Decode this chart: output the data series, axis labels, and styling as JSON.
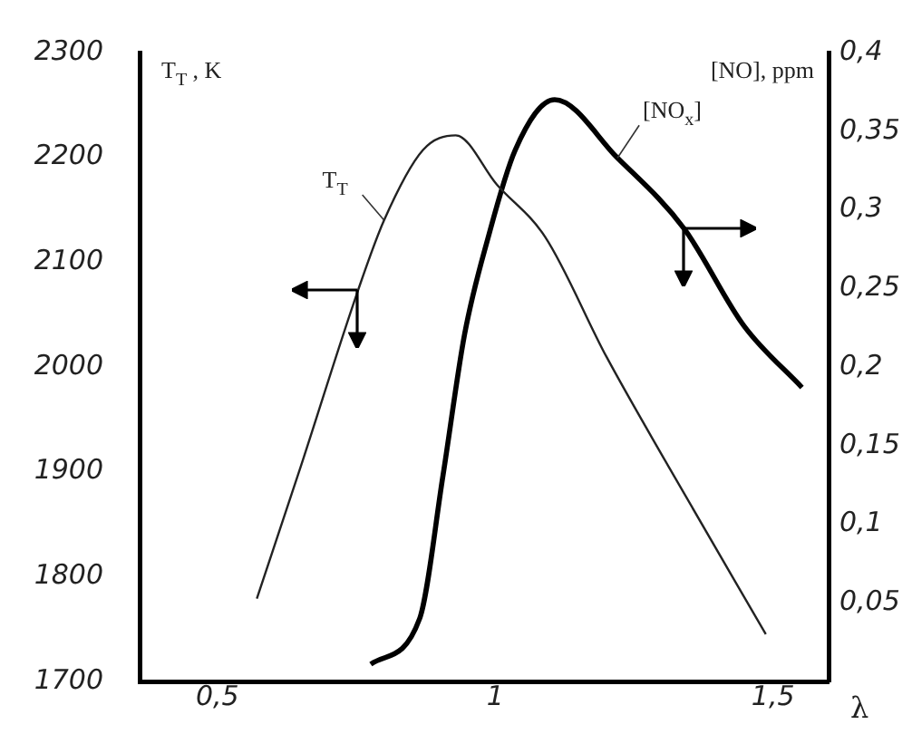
{
  "chart_data": {
    "type": "line",
    "xlabel": "λ",
    "ylabel": "T$_{T}$ , K",
    "y2label": "[NO], ppm",
    "marker": "none",
    "xlim": [
      0.36,
      1.6
    ],
    "xticks": [
      {
        "value": 0.5,
        "label": "0,5"
      },
      {
        "value": 1,
        "label": "1"
      },
      {
        "value": 1.5,
        "label": "1,5"
      }
    ],
    "ylim": [
      1700,
      2300
    ],
    "yticks": [
      1700,
      1800,
      1900,
      2000,
      2100,
      2200,
      2300
    ],
    "y2lim": [
      0,
      0.4
    ],
    "y2ticks": [
      {
        "value": 0.05,
        "label": "0,05"
      },
      {
        "value": 0.1,
        "label": "0,1"
      },
      {
        "value": 0.15,
        "label": "0,15"
      },
      {
        "value": 0.2,
        "label": "0,2"
      },
      {
        "value": 0.25,
        "label": "0,25"
      },
      {
        "value": 0.3,
        "label": "0,3"
      },
      {
        "value": 0.35,
        "label": "0,35"
      },
      {
        "value": 0.4,
        "label": "0,4"
      }
    ],
    "series": [
      {
        "name": "T$_{T}$",
        "color": "#222222",
        "x": [
          0.571,
          0.65,
          0.753,
          0.8,
          0.87,
          0.929,
          1.003,
          1.09,
          1.2,
          1.312,
          1.487
        ],
        "values": [
          1779,
          1905,
          2073,
          2140,
          2207,
          2221,
          2174,
          2124,
          2010,
          1905,
          1745
        ]
      },
      {
        "name": "[NO$_{x}$]",
        "color": "#000000",
        "axis": "y2",
        "x": [
          0.776,
          0.864,
          0.906,
          0.945,
          0.987,
          1.036,
          1.107,
          1.22,
          1.34,
          1.448,
          1.552
        ],
        "values": [
          0.011,
          0.04,
          0.131,
          0.221,
          0.282,
          0.338,
          0.37,
          0.333,
          0.288,
          0.226,
          0.187
        ]
      }
    ]
  }
}
